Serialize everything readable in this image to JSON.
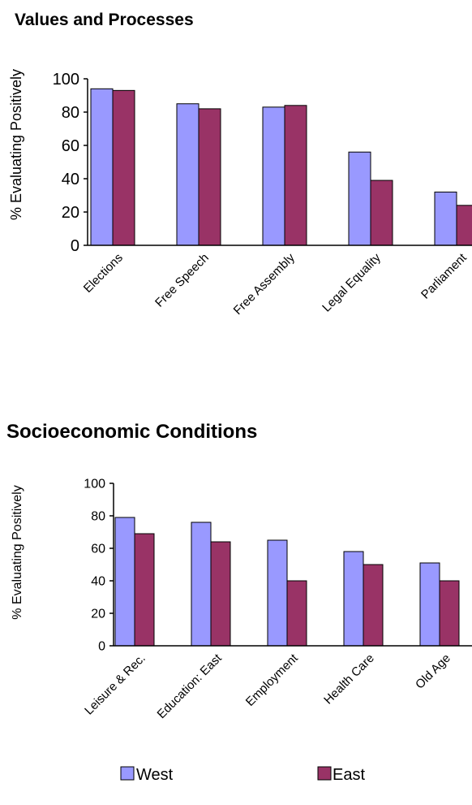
{
  "chart_data": [
    {
      "type": "bar",
      "title": "Values and Processes",
      "xlabel": "",
      "ylabel": "% Evaluating Positively",
      "ylim": [
        0,
        100
      ],
      "yticks": [
        0,
        20,
        40,
        60,
        80,
        100
      ],
      "categories": [
        "Elections",
        "Free Speech",
        "Free Assembly",
        "Legal Equality",
        "Parliament"
      ],
      "series": [
        {
          "name": "West",
          "values": [
            94,
            85,
            83,
            56,
            32
          ]
        },
        {
          "name": "East",
          "values": [
            93,
            82,
            84,
            39,
            24
          ]
        }
      ],
      "grid": false
    },
    {
      "type": "bar",
      "title": "Socioeconomic Conditions",
      "xlabel": "",
      "ylabel": "% Evaluating Positively",
      "ylim": [
        0,
        100
      ],
      "yticks": [
        0,
        20,
        40,
        60,
        80,
        100
      ],
      "categories": [
        "Leisure & Rec.",
        "Education: East",
        "Employment",
        "Health Care",
        "Old Age"
      ],
      "series": [
        {
          "name": "West",
          "values": [
            79,
            76,
            65,
            58,
            51
          ]
        },
        {
          "name": "East",
          "values": [
            69,
            64,
            40,
            50,
            40
          ]
        }
      ],
      "grid": false
    }
  ],
  "legend": {
    "placement": "bottom",
    "items": [
      {
        "label": "West",
        "color": "#9999ff"
      },
      {
        "label": "East",
        "color": "#993366"
      }
    ]
  },
  "colors": {
    "west": "#9999ff",
    "east": "#993366",
    "axis": "#000000"
  }
}
